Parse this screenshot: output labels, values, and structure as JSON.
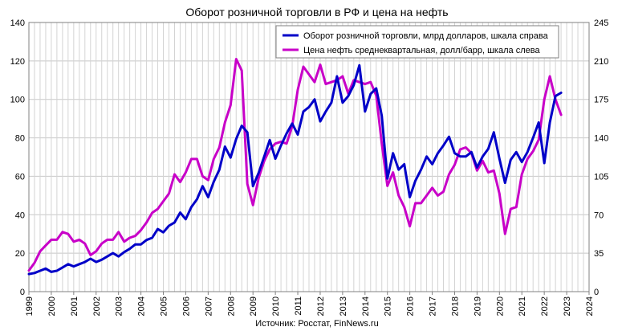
{
  "chart_data": {
    "type": "line",
    "title": "Оборот розничной торговли в РФ и цена на нефть",
    "source": "Источник: Росстат, FinNews.ru",
    "left_axis": {
      "ylim": [
        0,
        140
      ],
      "ticks": [
        "0",
        "20",
        "40",
        "60",
        "80",
        "100",
        "120",
        "140"
      ]
    },
    "right_axis": {
      "ylim": [
        0,
        245
      ],
      "ticks": [
        "0",
        "35",
        "70",
        "105",
        "140",
        "175",
        "210",
        "245"
      ]
    },
    "x_axis": {
      "xlim": [
        1999,
        2024
      ],
      "ticks": [
        "1999",
        "2000",
        "2001",
        "2002",
        "2003",
        "2004",
        "2005",
        "2006",
        "2007",
        "2008",
        "2009",
        "2010",
        "2011",
        "2012",
        "2013",
        "2014",
        "2015",
        "2016",
        "2017",
        "2018",
        "2019",
        "2020",
        "2021",
        "2022",
        "2023",
        "2024"
      ]
    },
    "grid": true,
    "legend_position": "top-right",
    "series": [
      {
        "name": "Оборот розничной торговли, млрд долларов, шкала справа",
        "color": "#0000c8",
        "axis": "right",
        "x": [
          1999.0,
          1999.25,
          1999.5,
          1999.75,
          2000.0,
          2000.25,
          2000.5,
          2000.75,
          2001.0,
          2001.25,
          2001.5,
          2001.75,
          2002.0,
          2002.25,
          2002.5,
          2002.75,
          2003.0,
          2003.25,
          2003.5,
          2003.75,
          2004.0,
          2004.25,
          2004.5,
          2004.75,
          2005.0,
          2005.25,
          2005.5,
          2005.75,
          2006.0,
          2006.25,
          2006.5,
          2006.75,
          2007.0,
          2007.25,
          2007.5,
          2007.75,
          2008.0,
          2008.25,
          2008.5,
          2008.75,
          2009.0,
          2009.25,
          2009.5,
          2009.75,
          2010.0,
          2010.25,
          2010.5,
          2010.75,
          2011.0,
          2011.25,
          2011.5,
          2011.75,
          2012.0,
          2012.25,
          2012.5,
          2012.75,
          2013.0,
          2013.25,
          2013.5,
          2013.75,
          2014.0,
          2014.25,
          2014.5,
          2014.75,
          2015.0,
          2015.25,
          2015.5,
          2015.75,
          2016.0,
          2016.25,
          2016.5,
          2016.75,
          2017.0,
          2017.25,
          2017.5,
          2017.75,
          2018.0,
          2018.25,
          2018.5,
          2018.75,
          2019.0,
          2019.25,
          2019.5,
          2019.75,
          2020.0,
          2020.25,
          2020.5,
          2020.75,
          2021.0,
          2021.25,
          2021.5,
          2021.75,
          2022.0,
          2022.25,
          2022.5,
          2022.75
        ],
        "values": [
          16,
          17,
          19,
          21,
          18,
          19,
          22,
          25,
          23,
          25,
          27,
          30,
          27,
          29,
          32,
          35,
          32,
          36,
          39,
          43,
          43,
          47,
          49,
          57,
          54,
          60,
          63,
          72,
          66,
          77,
          84,
          96,
          86,
          100,
          111,
          132,
          122,
          139,
          151,
          145,
          96,
          108,
          123,
          138,
          121,
          133,
          144,
          153,
          143,
          164,
          168,
          175,
          155,
          164,
          172,
          196,
          172,
          178,
          188,
          206,
          164,
          180,
          185,
          160,
          103,
          126,
          111,
          116,
          86,
          101,
          111,
          123,
          116,
          126,
          133,
          141,
          126,
          123,
          123,
          127,
          113,
          123,
          130,
          145,
          121,
          99,
          120,
          127,
          118,
          127,
          140,
          154,
          117,
          154,
          178,
          181
        ]
      },
      {
        "name": "Цена нефть среднеквартальная, долл/барр, шкала слева",
        "color": "#c800c8",
        "axis": "left",
        "x": [
          1999.0,
          1999.25,
          1999.5,
          1999.75,
          2000.0,
          2000.25,
          2000.5,
          2000.75,
          2001.0,
          2001.25,
          2001.5,
          2001.75,
          2002.0,
          2002.25,
          2002.5,
          2002.75,
          2003.0,
          2003.25,
          2003.5,
          2003.75,
          2004.0,
          2004.25,
          2004.5,
          2004.75,
          2005.0,
          2005.25,
          2005.5,
          2005.75,
          2006.0,
          2006.25,
          2006.5,
          2006.75,
          2007.0,
          2007.25,
          2007.5,
          2007.75,
          2008.0,
          2008.25,
          2008.5,
          2008.75,
          2009.0,
          2009.25,
          2009.5,
          2009.75,
          2010.0,
          2010.25,
          2010.5,
          2010.75,
          2011.0,
          2011.25,
          2011.5,
          2011.75,
          2012.0,
          2012.25,
          2012.5,
          2012.75,
          2013.0,
          2013.25,
          2013.5,
          2013.75,
          2014.0,
          2014.25,
          2014.5,
          2014.75,
          2015.0,
          2015.25,
          2015.5,
          2015.75,
          2016.0,
          2016.25,
          2016.5,
          2016.75,
          2017.0,
          2017.25,
          2017.5,
          2017.75,
          2018.0,
          2018.25,
          2018.5,
          2018.75,
          2019.0,
          2019.25,
          2019.5,
          2019.75,
          2020.0,
          2020.25,
          2020.5,
          2020.75,
          2021.0,
          2021.25,
          2021.5,
          2021.75,
          2022.0,
          2022.25,
          2022.5,
          2022.75
        ],
        "values": [
          11,
          15,
          21,
          24,
          27,
          27,
          31,
          30,
          26,
          27,
          25,
          19,
          21,
          25,
          27,
          27,
          31,
          26,
          28,
          29,
          32,
          36,
          41,
          43,
          47,
          51,
          61,
          57,
          62,
          69,
          69,
          60,
          58,
          69,
          75,
          88,
          97,
          121,
          115,
          56,
          45,
          59,
          68,
          74,
          77,
          78,
          77,
          86,
          105,
          117,
          113,
          109,
          118,
          108,
          109,
          110,
          112,
          103,
          110,
          109,
          108,
          109,
          102,
          77,
          55,
          62,
          50,
          44,
          34,
          46,
          46,
          50,
          54,
          50,
          52,
          61,
          66,
          74,
          75,
          72,
          63,
          68,
          62,
          63,
          51,
          30,
          43,
          44,
          61,
          69,
          73,
          79,
          100,
          112,
          100,
          92
        ]
      }
    ]
  }
}
